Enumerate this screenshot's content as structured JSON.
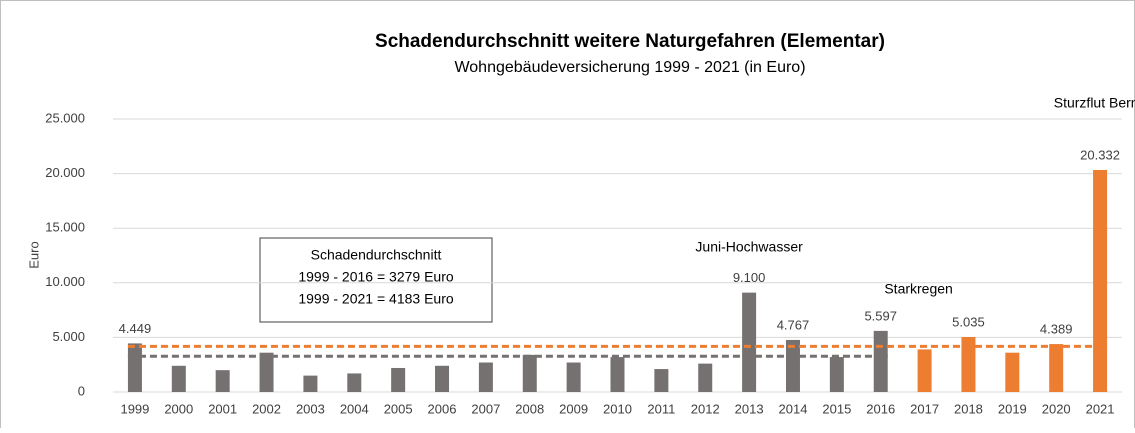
{
  "chart_data": {
    "type": "bar",
    "title": "Schadendurchschnitt weitere Naturgefahren (Elementar)",
    "subtitle": "Wohngebäudeversicherung 1999 - 2021 (in Euro)",
    "y_label": "Euro",
    "categories": [
      "1999",
      "2000",
      "2001",
      "2002",
      "2003",
      "2004",
      "2005",
      "2006",
      "2007",
      "2008",
      "2009",
      "2010",
      "2011",
      "2012",
      "2013",
      "2014",
      "2015",
      "2016",
      "2017",
      "2018",
      "2019",
      "2020",
      "2021"
    ],
    "values": [
      4449,
      2400,
      2000,
      3600,
      1500,
      1700,
      2200,
      2400,
      2700,
      3400,
      2700,
      3200,
      2100,
      2600,
      9100,
      4767,
      3200,
      5597,
      3900,
      5035,
      3600,
      4389,
      20332
    ],
    "value_labels": [
      "4.449",
      null,
      null,
      null,
      null,
      null,
      null,
      null,
      null,
      null,
      null,
      null,
      null,
      null,
      "9.100",
      "4.767",
      null,
      "5.597",
      null,
      "5.035",
      null,
      "4.389",
      "20.332"
    ],
    "colors": [
      "#767171",
      "#767171",
      "#767171",
      "#767171",
      "#767171",
      "#767171",
      "#767171",
      "#767171",
      "#767171",
      "#767171",
      "#767171",
      "#767171",
      "#767171",
      "#767171",
      "#767171",
      "#767171",
      "#767171",
      "#767171",
      "#ed7d31",
      "#ed7d31",
      "#ed7d31",
      "#ed7d31",
      "#ed7d31"
    ],
    "ylim": [
      0,
      25000
    ],
    "yticks": [
      0,
      {
        "value": 5000,
        "label": "5.000"
      },
      {
        "value": 10000,
        "label": "10.000"
      },
      {
        "value": 15000,
        "label": "15.000"
      },
      {
        "value": 20000,
        "label": "20.000"
      },
      {
        "value": 25000,
        "label": "25.000"
      }
    ],
    "grid": true,
    "reference_lines": [
      {
        "value": 3279,
        "color": "#767171",
        "from": "1999",
        "to": "2016"
      },
      {
        "value": 4183,
        "color": "#ed7d31",
        "from": "1999",
        "to": "2021"
      }
    ],
    "annotations": [
      {
        "text": "Juni-Hochwasser",
        "category": "2013"
      },
      {
        "text": "Starkregen",
        "category": "2017"
      },
      {
        "text": "Sturzflut Bernd",
        "category": "2021"
      }
    ],
    "textbox": [
      "Schadendurchschnitt",
      "1999 - 2016 = 3279 Euro",
      "1999 - 2021 = 4183 Euro"
    ]
  }
}
